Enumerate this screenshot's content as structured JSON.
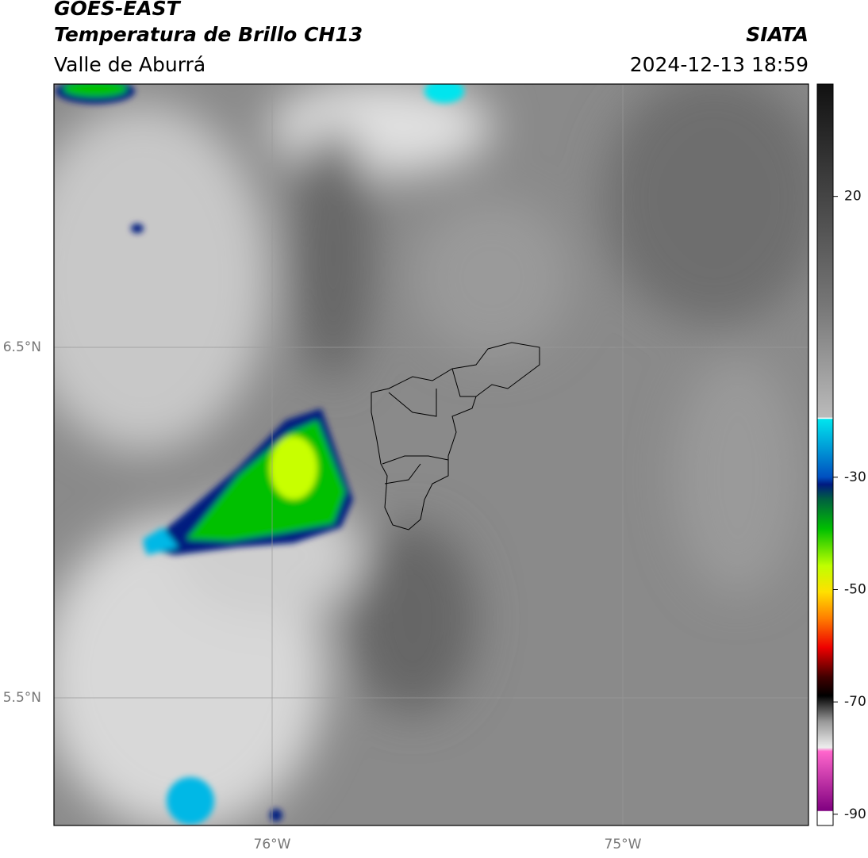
{
  "header": {
    "title": "GOES-EAST",
    "subtitle": "Temperatura de Brillo CH13",
    "region": "Valle de Aburrá",
    "source": "SIATA",
    "datetime": "2024-12-13 18:59"
  },
  "map": {
    "lat_labels": [
      "6.5°N",
      "5.5°N"
    ],
    "lon_labels": [
      "76°W",
      "75°W"
    ]
  },
  "colorbar": {
    "range": [
      -92,
      40
    ],
    "ticks": [
      20,
      -30,
      -50,
      -70,
      -90
    ]
  }
}
